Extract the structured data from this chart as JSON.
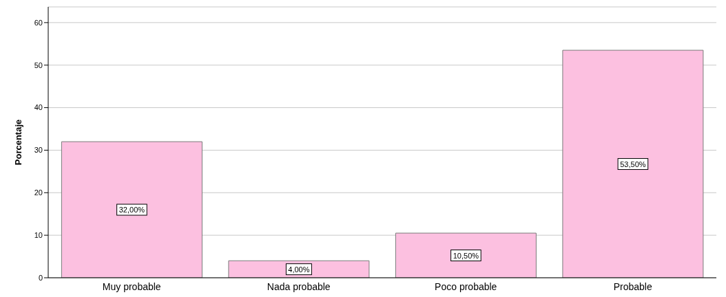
{
  "chart_data": {
    "type": "bar",
    "ylabel": "Porcentaje",
    "categories": [
      "Muy probable",
      "Nada probable",
      "Poco probable",
      "Probable"
    ],
    "values": [
      32,
      4,
      10.5,
      53.5
    ],
    "value_labels": [
      "32,00%",
      "4,00%",
      "10,50%",
      "53,50%"
    ],
    "color": "#fcc0e0",
    "ylim": [
      0,
      63.7
    ],
    "yticks": [
      0,
      10,
      20,
      30,
      40,
      50,
      60
    ],
    "grid": "y"
  }
}
